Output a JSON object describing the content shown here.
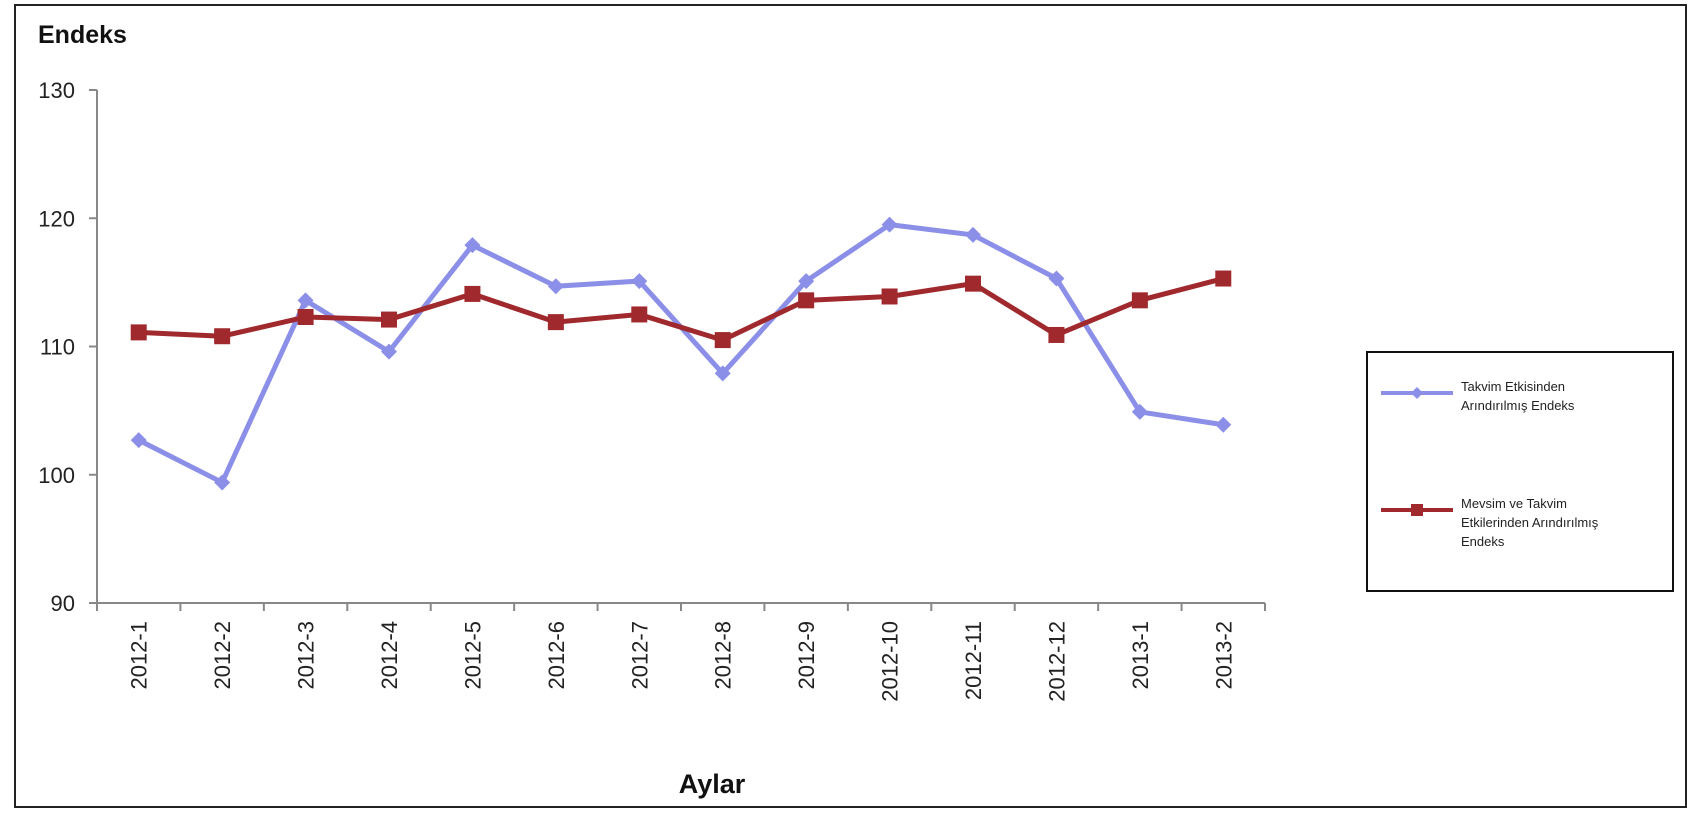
{
  "chart_data": {
    "type": "line",
    "ylabel": "Endeks",
    "xlabel": "Aylar",
    "categories": [
      "2012-1",
      "2012-2",
      "2012-3",
      "2012-4",
      "2012-5",
      "2012-6",
      "2012-7",
      "2012-8",
      "2012-9",
      "2012-10",
      "2012-11",
      "2012-12",
      "2013-1",
      "2013-2"
    ],
    "ylim": [
      90,
      130
    ],
    "yticks": [
      "90",
      "100",
      "110",
      "120",
      "130"
    ],
    "grid": false,
    "legend_position": "right",
    "series": [
      {
        "name": "Takvim Etkisinden Arındırılmış Endeks",
        "legend_lines": [
          "Takvim Etkisinden",
          "Arındırılmış Endeks"
        ],
        "color": "#8b8fe8",
        "marker": "diamond",
        "values": [
          102.7,
          99.4,
          113.6,
          109.6,
          117.9,
          114.7,
          115.1,
          107.9,
          115.1,
          119.5,
          118.7,
          115.3,
          104.9,
          103.9
        ]
      },
      {
        "name": "Mevsim ve Takvim Etkilerinden Arındırılmış Endeks",
        "legend_lines": [
          "Mevsim ve Takvim",
          "Etkilerinden Arındırılmış",
          "Endeks"
        ],
        "color": "#a0292d",
        "marker": "square",
        "values": [
          111.1,
          110.8,
          112.3,
          112.1,
          114.1,
          111.9,
          112.5,
          110.5,
          113.6,
          113.9,
          114.9,
          110.9,
          113.6,
          115.3
        ]
      }
    ]
  }
}
